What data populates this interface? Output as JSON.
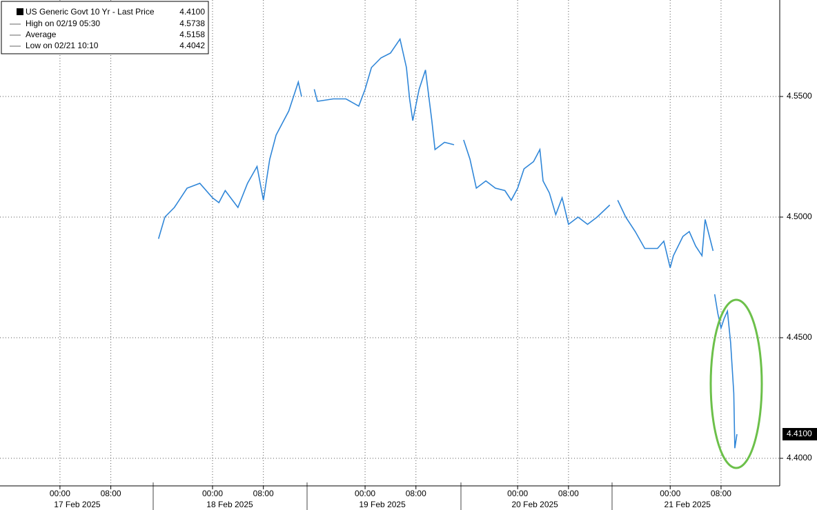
{
  "chart_data": {
    "type": "line",
    "legend_stats": [
      {
        "label": "US Generic Govt 10 Yr - Last Price",
        "value": 4.41,
        "value_label": "4.4100"
      },
      {
        "label": "High on 02/19 05:30",
        "value": 4.5738,
        "value_label": "4.5738"
      },
      {
        "label": "Average",
        "value": 4.5158,
        "value_label": "4.5158"
      },
      {
        "label": "Low on 02/21 10:10",
        "value": 4.4042,
        "value_label": "4.4042"
      }
    ],
    "x": [
      "2025-02-17 15:30",
      "2025-02-17 16:30",
      "2025-02-17 18:00",
      "2025-02-17 20:00",
      "2025-02-17 22:00",
      "2025-02-18 00:00",
      "2025-02-18 01:00",
      "2025-02-18 02:00",
      "2025-02-18 04:00",
      "2025-02-18 05:30",
      "2025-02-18 07:00",
      "2025-02-18 08:00",
      "2025-02-18 09:00",
      "2025-02-18 10:00",
      "2025-02-18 11:00",
      "2025-02-18 12:00",
      "2025-02-18 13:30",
      "2025-02-18 14:00",
      "2025-02-18 15:00",
      "2025-02-18 16:00",
      "2025-02-18 16:30",
      "2025-02-18 19:00",
      "2025-02-18 21:00",
      "2025-02-18 23:00",
      "2025-02-19 00:00",
      "2025-02-19 01:00",
      "2025-02-19 02:30",
      "2025-02-19 04:00",
      "2025-02-19 05:30",
      "2025-02-19 06:30",
      "2025-02-19 07:00",
      "2025-02-19 07:30",
      "2025-02-19 08:30",
      "2025-02-19 09:30",
      "2025-02-19 10:30",
      "2025-02-19 11:00",
      "2025-02-19 12:30",
      "2025-02-19 14:00",
      "2025-02-19 15:00",
      "2025-02-19 15:30",
      "2025-02-19 16:30",
      "2025-02-19 17:30",
      "2025-02-19 19:00",
      "2025-02-19 20:30",
      "2025-02-19 22:00",
      "2025-02-19 23:00",
      "2025-02-20 00:00",
      "2025-02-20 01:00",
      "2025-02-20 02:30",
      "2025-02-20 03:30",
      "2025-02-20 04:00",
      "2025-02-20 05:00",
      "2025-02-20 06:00",
      "2025-02-20 07:00",
      "2025-02-20 08:00",
      "2025-02-20 09:30",
      "2025-02-20 11:00",
      "2025-02-20 12:30",
      "2025-02-20 14:30",
      "2025-02-20 15:00",
      "2025-02-20 15:45",
      "2025-02-20 17:00",
      "2025-02-20 18:30",
      "2025-02-20 20:00",
      "2025-02-20 22:00",
      "2025-02-20 23:00",
      "2025-02-21 00:00",
      "2025-02-21 00:30",
      "2025-02-21 02:00",
      "2025-02-21 03:00",
      "2025-02-21 04:00",
      "2025-02-21 05:00",
      "2025-02-21 05:30",
      "2025-02-21 06:45",
      "2025-02-21 06:50",
      "2025-02-21 07:00",
      "2025-02-21 07:30",
      "2025-02-21 08:00",
      "2025-02-21 08:30",
      "2025-02-21 09:00",
      "2025-02-21 09:30",
      "2025-02-21 10:00",
      "2025-02-21 10:10",
      "2025-02-21 10:30"
    ],
    "series": [
      {
        "color": "#2f86d8",
        "values": [
          4.491,
          4.5,
          4.504,
          4.512,
          4.514,
          4.508,
          4.506,
          4.511,
          4.504,
          4.514,
          4.521,
          4.507,
          4.524,
          4.534,
          4.539,
          4.544,
          4.556,
          4.55,
          null,
          4.553,
          4.548,
          4.549,
          4.549,
          4.546,
          4.553,
          4.562,
          4.566,
          4.568,
          4.5738,
          4.562,
          4.549,
          4.54,
          4.553,
          4.561,
          4.54,
          4.528,
          4.531,
          4.53,
          null,
          4.532,
          4.524,
          4.512,
          4.515,
          4.512,
          4.511,
          4.507,
          4.512,
          4.52,
          4.523,
          4.528,
          4.515,
          4.51,
          4.501,
          4.508,
          4.497,
          4.5,
          4.497,
          4.5,
          4.505,
          null,
          4.507,
          4.5,
          4.494,
          4.487,
          4.487,
          4.49,
          4.479,
          4.484,
          4.492,
          4.494,
          4.488,
          4.484,
          4.499,
          4.486,
          null,
          4.468,
          4.46,
          4.454,
          4.458,
          4.461,
          4.448,
          4.427,
          4.4042,
          4.41
        ]
      }
    ],
    "xlim": [
      "2025-02-16 14:34",
      "2025-02-21 17:14"
    ],
    "xticks": [
      {
        "value": "2025-02-17 00:00",
        "label": "00:00"
      },
      {
        "value": "2025-02-17 08:00",
        "label": "08:00"
      },
      {
        "value": "2025-02-18 00:00",
        "label": "00:00"
      },
      {
        "value": "2025-02-18 08:00",
        "label": "08:00"
      },
      {
        "value": "2025-02-19 00:00",
        "label": "00:00"
      },
      {
        "value": "2025-02-19 08:00",
        "label": "08:00"
      },
      {
        "value": "2025-02-20 00:00",
        "label": "00:00"
      },
      {
        "value": "2025-02-20 08:00",
        "label": "08:00"
      },
      {
        "value": "2025-02-21 00:00",
        "label": "00:00"
      },
      {
        "value": "2025-02-21 08:00",
        "label": "08:00"
      }
    ],
    "xdate_ticks": [
      {
        "value": "2025-02-17 00:00",
        "label": "17 Feb 2025"
      },
      {
        "value": "2025-02-18 00:00",
        "label": "18 Feb 2025"
      },
      {
        "value": "2025-02-19 00:00",
        "label": "19 Feb 2025"
      },
      {
        "value": "2025-02-20 00:00",
        "label": "20 Feb 2025"
      },
      {
        "value": "2025-02-21 00:00",
        "label": "21 Feb 2025"
      }
    ],
    "ylim": [
      4.39,
      4.59
    ],
    "yticks": [
      {
        "value": 4.4,
        "label": "4.4000"
      },
      {
        "value": 4.45,
        "label": "4.4500"
      },
      {
        "value": 4.5,
        "label": "4.5000"
      },
      {
        "value": 4.55,
        "label": "4.5500"
      }
    ],
    "grid": true
  }
}
